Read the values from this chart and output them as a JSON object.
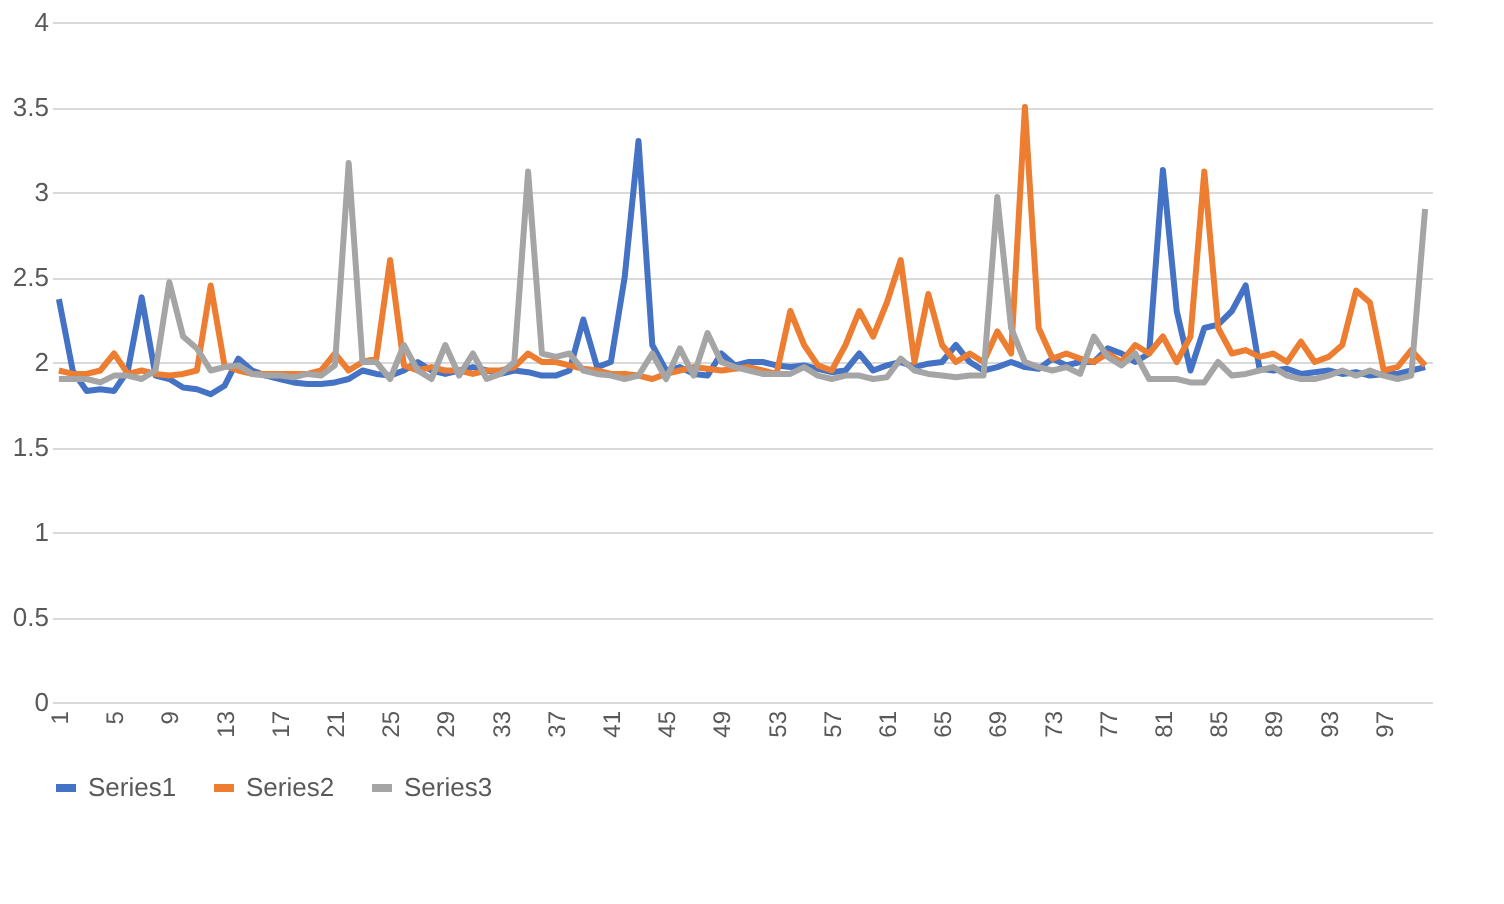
{
  "chart_data": {
    "type": "line",
    "categories": [
      "1",
      null,
      null,
      null,
      "5",
      null,
      null,
      null,
      "9",
      null,
      null,
      null,
      "13",
      null,
      null,
      null,
      "17",
      null,
      null,
      null,
      "21",
      null,
      null,
      null,
      "25",
      null,
      null,
      null,
      "29",
      null,
      null,
      null,
      "33",
      null,
      null,
      null,
      "37",
      null,
      null,
      null,
      "41",
      null,
      null,
      null,
      "45",
      null,
      null,
      null,
      "49",
      null,
      null,
      null,
      "53",
      null,
      null,
      null,
      "57",
      null,
      null,
      null,
      "61",
      null,
      null,
      null,
      "65",
      null,
      null,
      null,
      "69",
      null,
      null,
      null,
      "73",
      null,
      null,
      null,
      "77",
      null,
      null,
      null,
      "81",
      null,
      null,
      null,
      "85",
      null,
      null,
      null,
      "89",
      null,
      null,
      null,
      "93",
      null,
      null,
      null,
      "97",
      null,
      null,
      null
    ],
    "series": [
      {
        "name": "Series1",
        "color": "#4472c4",
        "values": [
          2.37,
          1.95,
          1.83,
          1.84,
          1.83,
          1.95,
          2.38,
          1.92,
          1.9,
          1.85,
          1.84,
          1.81,
          1.86,
          2.02,
          1.95,
          1.92,
          1.9,
          1.88,
          1.87,
          1.87,
          1.88,
          1.9,
          1.95,
          1.93,
          1.92,
          1.95,
          2.0,
          1.95,
          1.93,
          1.95,
          1.97,
          1.95,
          1.93,
          1.95,
          1.94,
          1.92,
          1.92,
          1.95,
          2.25,
          1.97,
          2.0,
          2.5,
          3.3,
          2.1,
          1.95,
          1.97,
          1.93,
          1.92,
          2.05,
          1.98,
          2.0,
          2.0,
          1.98,
          1.97,
          1.98,
          1.96,
          1.94,
          1.95,
          2.05,
          1.95,
          1.98,
          2.0,
          1.97,
          1.99,
          2.0,
          2.1,
          2.0,
          1.95,
          1.97,
          2.0,
          1.97,
          1.96,
          2.02,
          1.98,
          2.0,
          2.0,
          2.08,
          2.05,
          2.0,
          2.05,
          3.13,
          2.3,
          1.95,
          2.2,
          2.22,
          2.3,
          2.45,
          1.96,
          1.95,
          1.96,
          1.93,
          1.94,
          1.95,
          1.93,
          1.94,
          1.92,
          1.93,
          1.93,
          1.95,
          1.97
        ]
      },
      {
        "name": "Series2",
        "color": "#ed7d31",
        "values": [
          1.95,
          1.93,
          1.93,
          1.95,
          2.05,
          1.93,
          1.95,
          1.93,
          1.92,
          1.93,
          1.95,
          2.45,
          1.98,
          1.95,
          1.93,
          1.93,
          1.93,
          1.93,
          1.93,
          1.95,
          2.05,
          1.95,
          2.0,
          2.02,
          2.6,
          1.98,
          1.95,
          1.97,
          1.95,
          1.95,
          1.93,
          1.95,
          1.95,
          1.97,
          2.05,
          2.0,
          2.0,
          1.98,
          1.96,
          1.95,
          1.93,
          1.93,
          1.92,
          1.9,
          1.93,
          1.95,
          1.97,
          1.96,
          1.95,
          1.96,
          1.97,
          1.95,
          1.93,
          2.3,
          2.1,
          1.98,
          1.95,
          2.1,
          2.3,
          2.15,
          2.35,
          2.6,
          2.0,
          2.4,
          2.1,
          2.0,
          2.05,
          2.0,
          2.18,
          2.05,
          3.5,
          2.2,
          2.02,
          2.05,
          2.02,
          2.0,
          2.05,
          2.0,
          2.1,
          2.05,
          2.15,
          2.0,
          2.15,
          3.12,
          2.2,
          2.05,
          2.07,
          2.03,
          2.05,
          2.0,
          2.12,
          2.0,
          2.03,
          2.1,
          2.42,
          2.35,
          1.95,
          1.97,
          2.07,
          1.98
        ]
      },
      {
        "name": "Series3",
        "color": "#a5a5a5",
        "values": [
          1.9,
          1.9,
          1.9,
          1.88,
          1.92,
          1.92,
          1.9,
          1.95,
          2.47,
          2.15,
          2.08,
          1.95,
          1.97,
          1.98,
          1.93,
          1.92,
          1.92,
          1.91,
          1.93,
          1.92,
          1.98,
          3.17,
          2.0,
          2.0,
          1.9,
          2.1,
          1.95,
          1.9,
          2.1,
          1.92,
          2.05,
          1.9,
          1.93,
          2.0,
          3.12,
          2.05,
          2.03,
          2.05,
          1.95,
          1.93,
          1.92,
          1.9,
          1.92,
          2.05,
          1.9,
          2.08,
          1.92,
          2.17,
          2.0,
          1.97,
          1.95,
          1.93,
          1.93,
          1.93,
          1.97,
          1.92,
          1.9,
          1.92,
          1.92,
          1.9,
          1.91,
          2.02,
          1.95,
          1.93,
          1.92,
          1.91,
          1.92,
          1.92,
          2.97,
          2.2,
          2.0,
          1.97,
          1.95,
          1.97,
          1.93,
          2.15,
          2.03,
          1.98,
          2.05,
          1.9,
          1.9,
          1.9,
          1.88,
          1.88,
          2.0,
          1.92,
          1.93,
          1.95,
          1.97,
          1.92,
          1.9,
          1.9,
          1.92,
          1.95,
          1.92,
          1.95,
          1.92,
          1.9,
          1.92,
          2.9
        ]
      }
    ],
    "ylim": [
      0,
      4
    ],
    "yticks": [
      0,
      0.5,
      1,
      1.5,
      2,
      2.5,
      3,
      3.5,
      4
    ],
    "grid": "y",
    "legend": "bottom",
    "marker": "none",
    "line_style": "solid"
  }
}
